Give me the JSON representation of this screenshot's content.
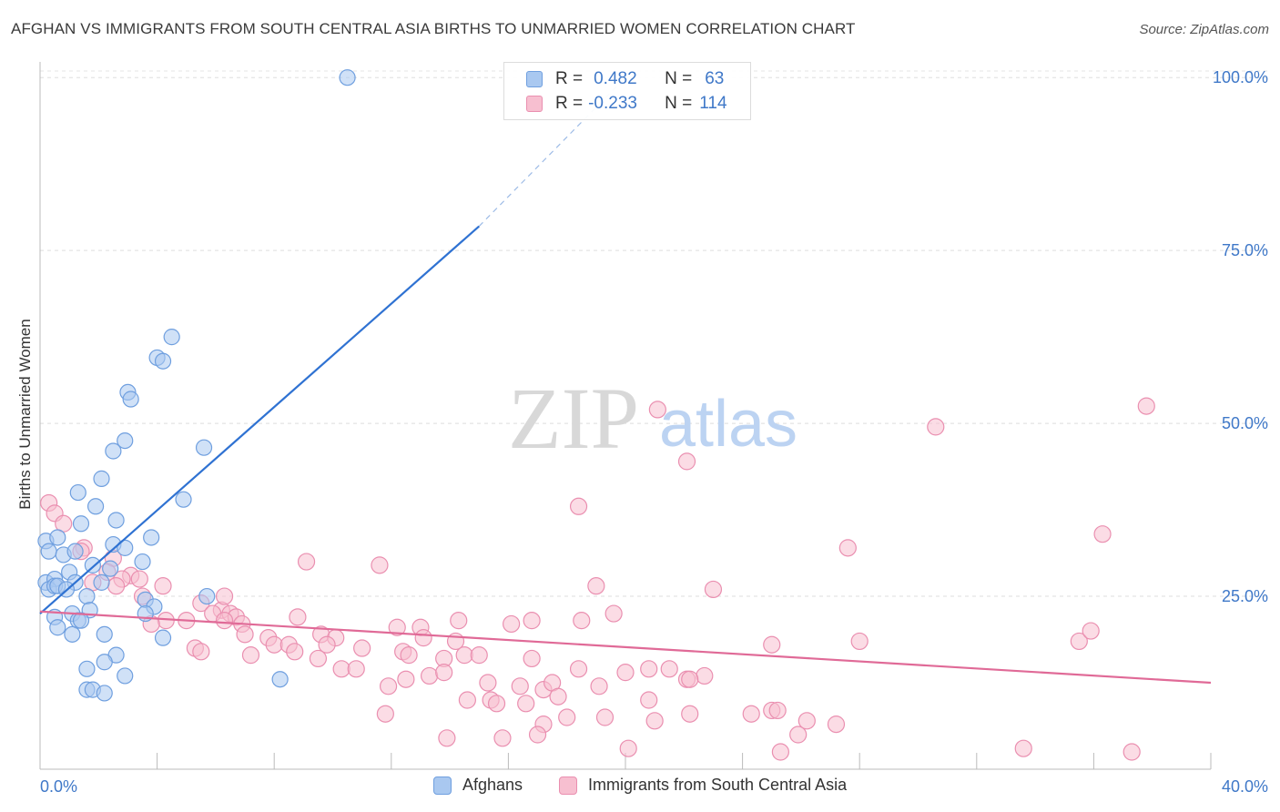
{
  "header": {
    "title": "AFGHAN VS IMMIGRANTS FROM SOUTH CENTRAL ASIA BIRTHS TO UNMARRIED WOMEN CORRELATION CHART",
    "source": "Source: ZipAtlas.com"
  },
  "watermark": {
    "zip": "ZIP",
    "atlas": "atlas"
  },
  "legend": {
    "rows": [
      {
        "r_label": "R =",
        "r_value": "0.482",
        "n_label": "N =",
        "n_value": "63"
      },
      {
        "r_label": "R =",
        "r_value": "-0.233",
        "n_label": "N =",
        "n_value": "114"
      }
    ]
  },
  "colors": {
    "blue_fill": "#a9c8f0",
    "blue_stroke": "#6f9fdf",
    "blue_line": "#2f72d2",
    "pink_fill": "#f7bfd0",
    "pink_stroke": "#ea8fb0",
    "pink_line": "#e06a97",
    "tick_text": "#3f78c8"
  },
  "chart_data": {
    "type": "scatter",
    "title": "AFGHAN VS IMMIGRANTS FROM SOUTH CENTRAL ASIA BIRTHS TO UNMARRIED WOMEN CORRELATION CHART",
    "xlabel": "",
    "ylabel": "Births to Unmarried Women",
    "xlim": [
      0,
      40
    ],
    "ylim": [
      0,
      102
    ],
    "x_tick_labels": [
      "0.0%",
      "40.0%"
    ],
    "y_ticks": [
      25,
      50,
      75,
      100
    ],
    "y_tick_labels": [
      "25.0%",
      "50.0%",
      "75.0%",
      "100.0%"
    ],
    "grid": true,
    "legend_position": "top-center",
    "series": [
      {
        "name": "Afghans",
        "color": "#a9c8f0",
        "trend": {
          "x": [
            0,
            15
          ],
          "y": [
            22.5,
            78.5
          ],
          "dashed_to": [
            20,
            100
          ]
        },
        "points": [
          [
            10.5,
            100
          ],
          [
            4.5,
            62.5
          ],
          [
            4.0,
            59.5
          ],
          [
            4.2,
            59
          ],
          [
            3.0,
            54.5
          ],
          [
            3.1,
            53.5
          ],
          [
            5.6,
            46.5
          ],
          [
            2.9,
            47.5
          ],
          [
            2.5,
            46
          ],
          [
            2.1,
            42
          ],
          [
            1.3,
            40
          ],
          [
            4.9,
            39
          ],
          [
            1.9,
            38
          ],
          [
            1.4,
            35.5
          ],
          [
            2.6,
            36
          ],
          [
            3.8,
            33.5
          ],
          [
            0.2,
            33
          ],
          [
            2.5,
            32.5
          ],
          [
            2.9,
            32
          ],
          [
            0.3,
            31.5
          ],
          [
            0.8,
            31
          ],
          [
            1.2,
            31.5
          ],
          [
            3.5,
            30
          ],
          [
            1.8,
            29.5
          ],
          [
            2.4,
            29
          ],
          [
            1.0,
            28.5
          ],
          [
            0.2,
            27
          ],
          [
            0.5,
            27.5
          ],
          [
            1.2,
            27
          ],
          [
            2.1,
            27
          ],
          [
            0.3,
            26
          ],
          [
            0.5,
            26.5
          ],
          [
            0.6,
            26.5
          ],
          [
            0.9,
            26
          ],
          [
            1.6,
            25
          ],
          [
            5.7,
            25
          ],
          [
            3.6,
            24.5
          ],
          [
            3.9,
            23.5
          ],
          [
            1.7,
            23
          ],
          [
            1.1,
            22.5
          ],
          [
            0.5,
            22
          ],
          [
            1.3,
            21.5
          ],
          [
            0.6,
            20.5
          ],
          [
            1.4,
            21.5
          ],
          [
            3.6,
            22.5
          ],
          [
            1.1,
            19.5
          ],
          [
            2.2,
            19.5
          ],
          [
            4.2,
            19
          ],
          [
            2.6,
            16.5
          ],
          [
            2.2,
            15.5
          ],
          [
            1.6,
            14.5
          ],
          [
            2.9,
            13.5
          ],
          [
            8.2,
            13
          ],
          [
            1.6,
            11.5
          ],
          [
            1.8,
            11.5
          ],
          [
            2.2,
            11
          ],
          [
            0.6,
            33.5
          ]
        ]
      },
      {
        "name": "Immigrants from South Central Asia",
        "color": "#f7bfd0",
        "trend": {
          "x": [
            0,
            40
          ],
          "y": [
            22.8,
            12.5
          ]
        },
        "points": [
          [
            0.3,
            38.5
          ],
          [
            0.5,
            37
          ],
          [
            0.8,
            35.5
          ],
          [
            1.5,
            32
          ],
          [
            1.4,
            31.5
          ],
          [
            2.5,
            30.5
          ],
          [
            9.1,
            30
          ],
          [
            11.6,
            29.5
          ],
          [
            2.3,
            28.5
          ],
          [
            3.1,
            28
          ],
          [
            2.8,
            27.5
          ],
          [
            2.6,
            26.5
          ],
          [
            1.8,
            27
          ],
          [
            3.4,
            27.5
          ],
          [
            4.2,
            26.5
          ],
          [
            3.5,
            25
          ],
          [
            5.5,
            24
          ],
          [
            6.2,
            23
          ],
          [
            6.5,
            22.5
          ],
          [
            6.7,
            22
          ],
          [
            5.9,
            22.5
          ],
          [
            6.3,
            21.5
          ],
          [
            4.3,
            21.5
          ],
          [
            3.8,
            21
          ],
          [
            6.9,
            21
          ],
          [
            8.8,
            22
          ],
          [
            12.2,
            20.5
          ],
          [
            13.0,
            20.5
          ],
          [
            14.3,
            21.5
          ],
          [
            16.1,
            21
          ],
          [
            7.0,
            19.5
          ],
          [
            7.8,
            19
          ],
          [
            9.6,
            19.5
          ],
          [
            10.1,
            19
          ],
          [
            13.1,
            19
          ],
          [
            14.2,
            18.5
          ],
          [
            8.0,
            18
          ],
          [
            8.5,
            18
          ],
          [
            8.7,
            17
          ],
          [
            9.8,
            18
          ],
          [
            11.0,
            17.5
          ],
          [
            12.4,
            17
          ],
          [
            12.6,
            16.5
          ],
          [
            13.8,
            16
          ],
          [
            14.5,
            16.5
          ],
          [
            15.0,
            16.5
          ],
          [
            16.8,
            16
          ],
          [
            5.3,
            17.5
          ],
          [
            5.5,
            17
          ],
          [
            7.2,
            16.5
          ],
          [
            9.5,
            16
          ],
          [
            10.3,
            14.5
          ],
          [
            10.8,
            14.5
          ],
          [
            13.3,
            13.5
          ],
          [
            13.8,
            14
          ],
          [
            11.9,
            12
          ],
          [
            12.5,
            13
          ],
          [
            15.3,
            12.5
          ],
          [
            16.4,
            12
          ],
          [
            17.2,
            11.5
          ],
          [
            17.5,
            12.5
          ],
          [
            18.4,
            14.5
          ],
          [
            19.1,
            12
          ],
          [
            20.0,
            14
          ],
          [
            20.8,
            14.5
          ],
          [
            22.1,
            13
          ],
          [
            22.7,
            13.5
          ],
          [
            14.6,
            10
          ],
          [
            15.4,
            10
          ],
          [
            15.6,
            9.5
          ],
          [
            16.6,
            9.5
          ],
          [
            17.7,
            10.5
          ],
          [
            20.8,
            10
          ],
          [
            25.0,
            8.5
          ],
          [
            24.3,
            8
          ],
          [
            25.2,
            8.5
          ],
          [
            22.2,
            8
          ],
          [
            21.0,
            7
          ],
          [
            26.2,
            7
          ],
          [
            27.2,
            6.5
          ],
          [
            11.8,
            8
          ],
          [
            17.2,
            6.5
          ],
          [
            18.0,
            7.5
          ],
          [
            19.3,
            7.5
          ],
          [
            13.9,
            4.5
          ],
          [
            15.8,
            4.5
          ],
          [
            17.0,
            5
          ],
          [
            25.9,
            5
          ],
          [
            20.1,
            3
          ],
          [
            25.3,
            2.5
          ],
          [
            33.6,
            3
          ],
          [
            37.3,
            2.5
          ],
          [
            18.4,
            38
          ],
          [
            21.1,
            52
          ],
          [
            22.1,
            44.5
          ],
          [
            30.6,
            49.5
          ],
          [
            37.8,
            52.5
          ],
          [
            36.3,
            34
          ],
          [
            27.6,
            32
          ],
          [
            19.0,
            26.5
          ],
          [
            23.0,
            26
          ],
          [
            16.8,
            21.5
          ],
          [
            18.5,
            21.5
          ],
          [
            19.6,
            22.5
          ],
          [
            25.0,
            18
          ],
          [
            28.0,
            18.5
          ],
          [
            35.5,
            18.5
          ],
          [
            35.9,
            20
          ],
          [
            21.5,
            14.5
          ],
          [
            22.2,
            13
          ],
          [
            6.3,
            25
          ],
          [
            5.0,
            21.5
          ]
        ]
      }
    ]
  },
  "bottom_legend": [
    {
      "label": "Afghans"
    },
    {
      "label": "Immigrants from South Central Asia"
    }
  ]
}
